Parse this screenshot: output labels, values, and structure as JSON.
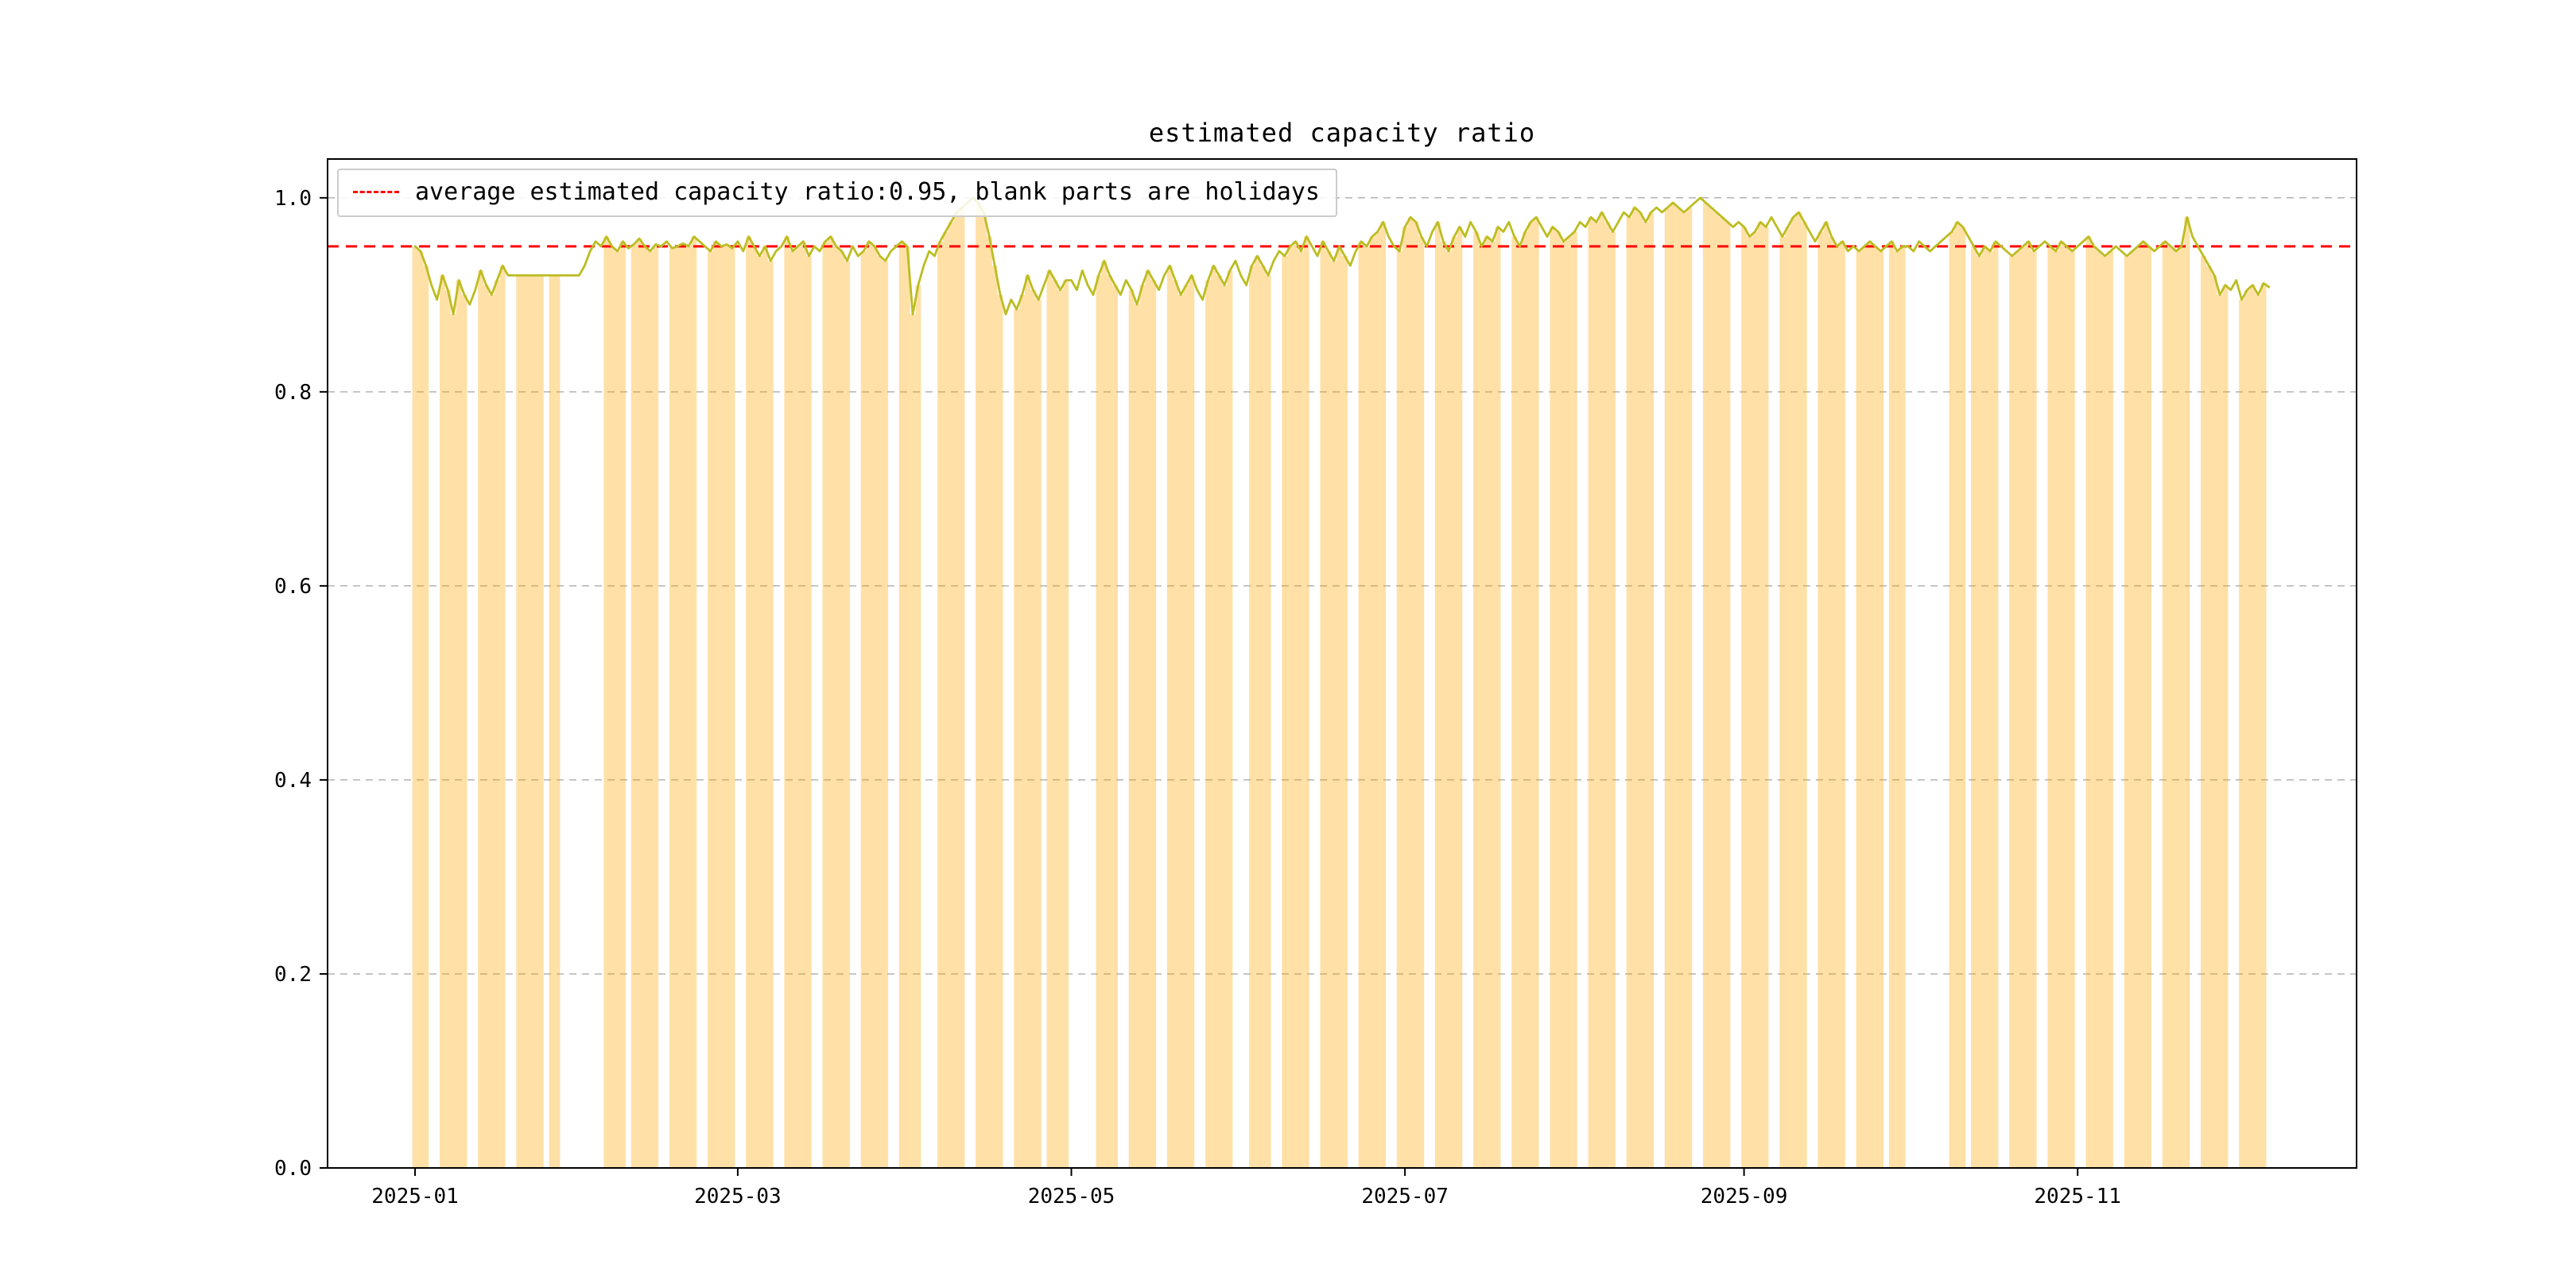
{
  "chart_data": {
    "type": "line",
    "title": "estimated capacity ratio",
    "legend": [
      "average estimated capacity ratio:0.95, blank parts are holidays"
    ],
    "legend_position": "upper left",
    "average": 0.95,
    "start_date": "2025-01-01",
    "x_ticks": [
      {
        "label": "2025-01",
        "day": 0
      },
      {
        "label": "2025-03",
        "day": 59
      },
      {
        "label": "2025-05",
        "day": 120
      },
      {
        "label": "2025-07",
        "day": 181
      },
      {
        "label": "2025-09",
        "day": 243
      },
      {
        "label": "2025-11",
        "day": 304
      }
    ],
    "y_ticks": [
      0.0,
      0.2,
      0.4,
      0.6,
      0.8,
      1.0
    ],
    "xlim_days": [
      -16,
      355
    ],
    "ylim": [
      0.0,
      1.04
    ],
    "grid": true,
    "colors": {
      "line": "#bcbd22",
      "average_line": "#ff0000",
      "workday_band": "rgba(255,165,0,0.35)",
      "grid": "#b3b3b3",
      "frame": "#000000",
      "tick_text": "#000000"
    },
    "workday_spans": [
      [
        0,
        3
      ],
      [
        5,
        10
      ],
      [
        12,
        17
      ],
      [
        19,
        24
      ],
      [
        25,
        27
      ],
      [
        35,
        39
      ],
      [
        40,
        45
      ],
      [
        47,
        52
      ],
      [
        54,
        59
      ],
      [
        61,
        66
      ],
      [
        68,
        73
      ],
      [
        75,
        80
      ],
      [
        82,
        87
      ],
      [
        89,
        93
      ],
      [
        96,
        101
      ],
      [
        103,
        108
      ],
      [
        110,
        115
      ],
      [
        116,
        120
      ],
      [
        125,
        129
      ],
      [
        131,
        136
      ],
      [
        138,
        143
      ],
      [
        145,
        150
      ],
      [
        153,
        157
      ],
      [
        159,
        164
      ],
      [
        166,
        171
      ],
      [
        173,
        178
      ],
      [
        180,
        185
      ],
      [
        187,
        192
      ],
      [
        194,
        199
      ],
      [
        201,
        206
      ],
      [
        208,
        213
      ],
      [
        215,
        220
      ],
      [
        222,
        227
      ],
      [
        229,
        234
      ],
      [
        236,
        241
      ],
      [
        243,
        248
      ],
      [
        250,
        255
      ],
      [
        257,
        262
      ],
      [
        264,
        269
      ],
      [
        270,
        273
      ],
      [
        281,
        284
      ],
      [
        285,
        290
      ],
      [
        292,
        297
      ],
      [
        299,
        304
      ],
      [
        306,
        311
      ],
      [
        313,
        318
      ],
      [
        320,
        325
      ],
      [
        327,
        332
      ],
      [
        334,
        339
      ]
    ],
    "daily_values": [
      0.95,
      0.945,
      0.93,
      0.91,
      0.895,
      0.92,
      0.905,
      0.88,
      0.915,
      0.9,
      0.89,
      0.905,
      0.925,
      0.91,
      0.9,
      0.915,
      0.93,
      0.92,
      0.92,
      0.92,
      0.92,
      0.92,
      0.92,
      0.92,
      0.92,
      0.92,
      0.92,
      0.92,
      0.92,
      0.92,
      0.92,
      0.93,
      0.945,
      0.955,
      0.95,
      0.96,
      0.95,
      0.945,
      0.955,
      0.948,
      0.952,
      0.958,
      0.95,
      0.945,
      0.952,
      0.95,
      0.955,
      0.948,
      0.95,
      0.953,
      0.95,
      0.96,
      0.955,
      0.95,
      0.945,
      0.955,
      0.95,
      0.952,
      0.948,
      0.955,
      0.945,
      0.96,
      0.95,
      0.94,
      0.95,
      0.935,
      0.945,
      0.95,
      0.96,
      0.945,
      0.95,
      0.955,
      0.94,
      0.95,
      0.945,
      0.955,
      0.96,
      0.95,
      0.945,
      0.935,
      0.95,
      0.94,
      0.945,
      0.955,
      0.95,
      0.94,
      0.935,
      0.945,
      0.95,
      0.955,
      0.95,
      0.88,
      0.91,
      0.93,
      0.945,
      0.94,
      0.955,
      0.965,
      0.975,
      0.985,
      0.99,
      0.995,
      1.0,
      0.995,
      0.985,
      0.96,
      0.93,
      0.9,
      0.88,
      0.895,
      0.885,
      0.9,
      0.92,
      0.905,
      0.895,
      0.91,
      0.925,
      0.915,
      0.905,
      0.915,
      0.915,
      0.905,
      0.925,
      0.91,
      0.9,
      0.92,
      0.935,
      0.92,
      0.91,
      0.9,
      0.915,
      0.905,
      0.89,
      0.91,
      0.925,
      0.915,
      0.905,
      0.92,
      0.93,
      0.915,
      0.9,
      0.91,
      0.92,
      0.905,
      0.895,
      0.915,
      0.93,
      0.92,
      0.91,
      0.925,
      0.935,
      0.92,
      0.91,
      0.93,
      0.94,
      0.93,
      0.92,
      0.935,
      0.945,
      0.94,
      0.95,
      0.955,
      0.945,
      0.96,
      0.95,
      0.94,
      0.955,
      0.945,
      0.935,
      0.95,
      0.94,
      0.93,
      0.945,
      0.955,
      0.95,
      0.96,
      0.965,
      0.975,
      0.96,
      0.95,
      0.945,
      0.97,
      0.98,
      0.975,
      0.96,
      0.95,
      0.965,
      0.975,
      0.955,
      0.945,
      0.96,
      0.97,
      0.96,
      0.975,
      0.965,
      0.95,
      0.96,
      0.955,
      0.97,
      0.965,
      0.975,
      0.96,
      0.95,
      0.965,
      0.975,
      0.98,
      0.97,
      0.96,
      0.97,
      0.965,
      0.955,
      0.96,
      0.965,
      0.975,
      0.97,
      0.98,
      0.975,
      0.985,
      0.975,
      0.965,
      0.975,
      0.985,
      0.98,
      0.99,
      0.985,
      0.975,
      0.985,
      0.99,
      0.985,
      0.99,
      0.995,
      0.99,
      0.985,
      0.99,
      0.995,
      1.0,
      0.995,
      0.99,
      0.985,
      0.98,
      0.975,
      0.97,
      0.975,
      0.97,
      0.96,
      0.965,
      0.975,
      0.97,
      0.98,
      0.97,
      0.96,
      0.97,
      0.98,
      0.985,
      0.975,
      0.965,
      0.955,
      0.965,
      0.975,
      0.96,
      0.95,
      0.955,
      0.945,
      0.95,
      0.945,
      0.95,
      0.955,
      0.95,
      0.945,
      0.95,
      0.955,
      0.945,
      0.95,
      0.95,
      0.945,
      0.955,
      0.95,
      0.945,
      0.95,
      0.955,
      0.96,
      0.965,
      0.975,
      0.97,
      0.96,
      0.95,
      0.94,
      0.95,
      0.945,
      0.955,
      0.95,
      0.945,
      0.94,
      0.945,
      0.95,
      0.955,
      0.945,
      0.95,
      0.955,
      0.95,
      0.945,
      0.955,
      0.95,
      0.945,
      0.95,
      0.955,
      0.96,
      0.95,
      0.945,
      0.94,
      0.945,
      0.95,
      0.945,
      0.94,
      0.945,
      0.95,
      0.955,
      0.95,
      0.945,
      0.95,
      0.955,
      0.95,
      0.945,
      0.95,
      0.98,
      0.96,
      0.95,
      0.94,
      0.93,
      0.92,
      0.9,
      0.91,
      0.905,
      0.915,
      0.895,
      0.905,
      0.91,
      0.9,
      0.912,
      0.908
    ]
  }
}
